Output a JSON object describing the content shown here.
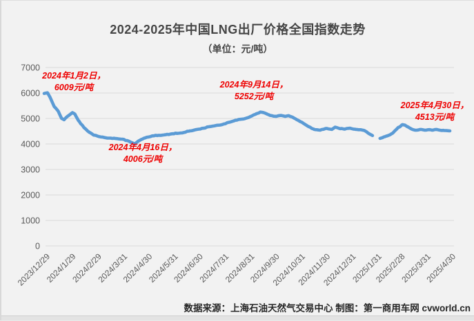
{
  "chart": {
    "title": "2024-2025年中国LNG出厂价格全国指数走势",
    "subtitle": "（单位：元/吨）"
  },
  "footer": {
    "text": "数据来源：上海石油天然气交易中心 制图：第一商用车网 cvworld.cn"
  },
  "annotations": [
    {
      "name": "start-peak",
      "line1": "2024年1月2日，",
      "line2": "6009元/吨"
    },
    {
      "name": "year-low",
      "line1": "2024年4月16日，",
      "line2": "4006元/吨"
    },
    {
      "name": "autumn-peak",
      "line1": "2024年9月14日，",
      "line2": "5252元/吨"
    },
    {
      "name": "latest",
      "line1": "2025年4月30日，",
      "line2": "4513元/吨"
    }
  ],
  "colors": {
    "line": "#5B9BD5",
    "grid": "#DADADA",
    "axis_text": "#595959",
    "title_text": "#454545",
    "annotation_text": "#EE0000",
    "background": "#F2F2F2"
  },
  "chart_data": {
    "type": "line",
    "title": "2024-2025年中国LNG出厂价格全国指数走势",
    "unit": "元/吨",
    "xlabel": "",
    "ylabel": "",
    "ylim": [
      0,
      7000
    ],
    "grid": "horizontal",
    "legend": "none",
    "y_ticks": [
      0,
      1000,
      2000,
      3000,
      4000,
      5000,
      6000,
      7000
    ],
    "x_ticks": [
      "2023/12/29",
      "2024/1/29",
      "2024/2/29",
      "2024/3/31",
      "2024/4/30",
      "2024/5/31",
      "2024/6/30",
      "2024/7/31",
      "2024/8/31",
      "2024/9/30",
      "2024/10/31",
      "2024/11/30",
      "2024/12/31",
      "2025/1/31",
      "2025/2/28",
      "2025/3/31",
      "2025/4/30"
    ],
    "x_range": [
      "2023-12-29",
      "2025-04-30"
    ],
    "key_points": [
      {
        "date": "2024-01-02",
        "value": 6009
      },
      {
        "date": "2024-04-16",
        "value": 4006
      },
      {
        "date": "2024-09-14",
        "value": 5252
      },
      {
        "date": "2025-04-30",
        "value": 4513
      }
    ],
    "series": [
      {
        "name": "LNG出厂价格全国指数",
        "segments": [
          [
            [
              "2023-12-29",
              5980
            ],
            [
              "2024-01-02",
              6009
            ],
            [
              "2024-01-05",
              5840
            ],
            [
              "2024-01-10",
              5470
            ],
            [
              "2024-01-15",
              5280
            ],
            [
              "2024-01-19",
              5000
            ],
            [
              "2024-01-22",
              4950
            ],
            [
              "2024-01-26",
              5080
            ],
            [
              "2024-02-01",
              5230
            ],
            [
              "2024-02-04",
              5170
            ],
            [
              "2024-02-08",
              4930
            ],
            [
              "2024-02-15",
              4640
            ],
            [
              "2024-02-20",
              4490
            ],
            [
              "2024-02-26",
              4360
            ],
            [
              "2024-03-04",
              4290
            ],
            [
              "2024-03-11",
              4250
            ],
            [
              "2024-03-18",
              4230
            ],
            [
              "2024-03-25",
              4210
            ],
            [
              "2024-04-01",
              4190
            ],
            [
              "2024-04-08",
              4120
            ],
            [
              "2024-04-12",
              4060
            ],
            [
              "2024-04-16",
              4006
            ],
            [
              "2024-04-19",
              4080
            ],
            [
              "2024-04-24",
              4180
            ],
            [
              "2024-04-30",
              4260
            ],
            [
              "2024-05-08",
              4320
            ],
            [
              "2024-05-15",
              4340
            ],
            [
              "2024-05-22",
              4360
            ],
            [
              "2024-05-31",
              4400
            ],
            [
              "2024-06-07",
              4420
            ],
            [
              "2024-06-14",
              4450
            ],
            [
              "2024-06-21",
              4510
            ],
            [
              "2024-06-30",
              4570
            ],
            [
              "2024-07-08",
              4620
            ],
            [
              "2024-07-15",
              4680
            ],
            [
              "2024-07-22",
              4720
            ],
            [
              "2024-07-31",
              4770
            ],
            [
              "2024-08-07",
              4850
            ],
            [
              "2024-08-15",
              4930
            ],
            [
              "2024-08-22",
              4970
            ],
            [
              "2024-08-28",
              5010
            ],
            [
              "2024-09-03",
              5090
            ],
            [
              "2024-09-09",
              5180
            ],
            [
              "2024-09-14",
              5252
            ],
            [
              "2024-09-18",
              5230
            ],
            [
              "2024-09-23",
              5160
            ],
            [
              "2024-09-28",
              5110
            ],
            [
              "2024-10-03",
              5080
            ],
            [
              "2024-10-09",
              5120
            ],
            [
              "2024-10-14",
              5080
            ],
            [
              "2024-10-18",
              5110
            ],
            [
              "2024-10-23",
              5050
            ],
            [
              "2024-10-28",
              4950
            ],
            [
              "2024-11-04",
              4830
            ],
            [
              "2024-11-11",
              4680
            ],
            [
              "2024-11-18",
              4570
            ],
            [
              "2024-11-25",
              4540
            ],
            [
              "2024-12-02",
              4610
            ],
            [
              "2024-12-09",
              4570
            ],
            [
              "2024-12-13",
              4660
            ],
            [
              "2024-12-18",
              4610
            ],
            [
              "2024-12-24",
              4580
            ],
            [
              "2024-12-31",
              4620
            ],
            [
              "2025-01-07",
              4570
            ],
            [
              "2025-01-13",
              4560
            ],
            [
              "2025-01-17",
              4530
            ],
            [
              "2025-01-22",
              4420
            ],
            [
              "2025-01-27",
              4330
            ]
          ],
          [
            [
              "2025-02-05",
              4220
            ],
            [
              "2025-02-10",
              4280
            ],
            [
              "2025-02-14",
              4320
            ],
            [
              "2025-02-20",
              4420
            ],
            [
              "2025-02-26",
              4620
            ],
            [
              "2025-03-04",
              4760
            ],
            [
              "2025-03-07",
              4740
            ],
            [
              "2025-03-12",
              4640
            ],
            [
              "2025-03-17",
              4560
            ],
            [
              "2025-03-21",
              4540
            ],
            [
              "2025-03-26",
              4570
            ],
            [
              "2025-03-31",
              4540
            ],
            [
              "2025-04-04",
              4560
            ],
            [
              "2025-04-09",
              4540
            ],
            [
              "2025-04-14",
              4570
            ],
            [
              "2025-04-18",
              4540
            ],
            [
              "2025-04-23",
              4530
            ],
            [
              "2025-04-28",
              4520
            ],
            [
              "2025-04-30",
              4513
            ]
          ]
        ]
      }
    ]
  }
}
